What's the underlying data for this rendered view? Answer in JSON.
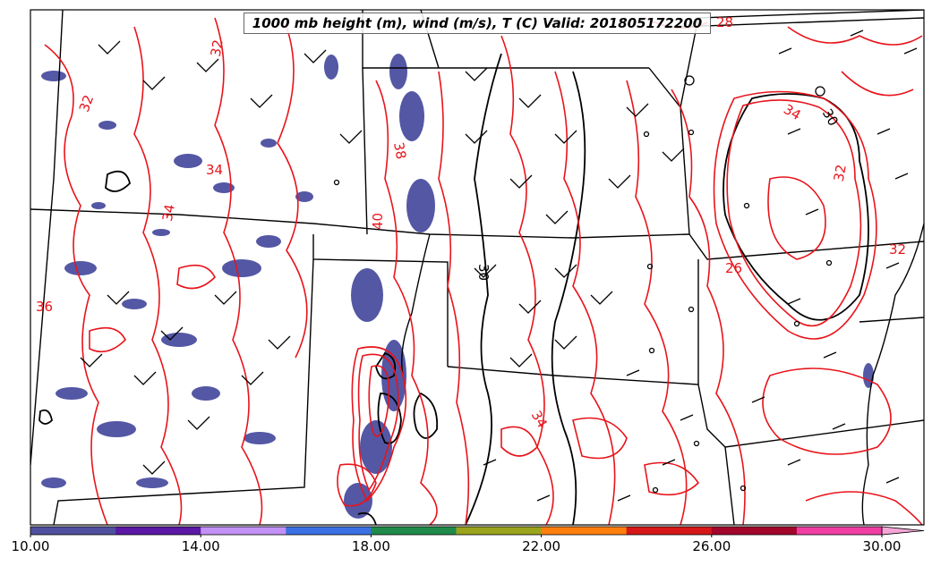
{
  "map": {
    "title": "1000 mb height (m), wind (m/s), T (C) Valid: 201805172200",
    "contour_labels": [
      "28",
      "32",
      "32",
      "34",
      "34",
      "36",
      "38",
      "40",
      "30",
      "34",
      "32",
      "34",
      "30",
      "32",
      "26"
    ],
    "colors": {
      "temperature_contour": "#e8141b",
      "height_contour": "#000000",
      "wind_barb": "#000000",
      "state_border": "#000000",
      "shade_primary": "#4b4fa0"
    }
  },
  "colorbar": {
    "min": 10.0,
    "max": 30.0,
    "tick_labels": [
      "10.00",
      "14.00",
      "18.00",
      "22.00",
      "26.00",
      "30.00"
    ],
    "tick_values": [
      10,
      14,
      18,
      22,
      26,
      30
    ],
    "colors": [
      "#4f4f9f",
      "#5a18a4",
      "#c291f5",
      "#3a70e3",
      "#1f8a4a",
      "#9aa41d",
      "#ff7f0e",
      "#d61717",
      "#a3062b",
      "#f03ea4",
      "#f5a6d6"
    ],
    "extend": "max"
  }
}
